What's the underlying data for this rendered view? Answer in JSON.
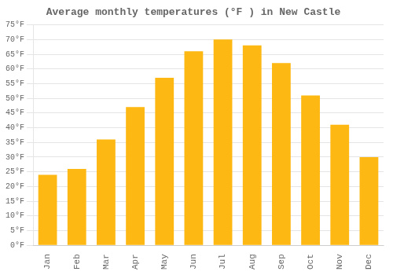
{
  "chart_data": {
    "type": "bar",
    "title": "Average monthly temperatures (°F ) in New Castle",
    "categories": [
      "Jan",
      "Feb",
      "Mar",
      "Apr",
      "May",
      "Jun",
      "Jul",
      "Aug",
      "Sep",
      "Oct",
      "Nov",
      "Dec"
    ],
    "values": [
      24,
      26,
      36,
      47,
      57,
      66,
      70,
      68,
      62,
      51,
      41,
      30
    ],
    "color": "#FDB813",
    "ylim": [
      0,
      75
    ],
    "yticks": [
      {
        "value": 0,
        "label": "0°F"
      },
      {
        "value": 5,
        "label": "5°F"
      },
      {
        "value": 10,
        "label": "10°F"
      },
      {
        "value": 15,
        "label": "15°F"
      },
      {
        "value": 20,
        "label": "20°F"
      },
      {
        "value": 25,
        "label": "25°F"
      },
      {
        "value": 30,
        "label": "30°F"
      },
      {
        "value": 35,
        "label": "35°F"
      },
      {
        "value": 40,
        "label": "40°F"
      },
      {
        "value": 45,
        "label": "45°F"
      },
      {
        "value": 50,
        "label": "50°F"
      },
      {
        "value": 55,
        "label": "55°F"
      },
      {
        "value": 60,
        "label": "60°F"
      },
      {
        "value": 65,
        "label": "65°F"
      },
      {
        "value": 70,
        "label": "70°F"
      },
      {
        "value": 75,
        "label": "75°F"
      }
    ],
    "grid": true
  }
}
